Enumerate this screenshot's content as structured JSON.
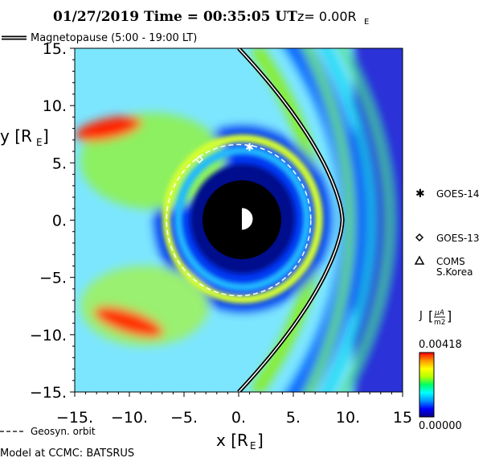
{
  "header": {
    "timestamp": "01/27/2019 Time = 00:35:05 UT",
    "z_label": "z= 0.00R",
    "z_sub": "E"
  },
  "legend_top": {
    "label": "Magnetopause (5:00 - 19:00 LT)"
  },
  "legend_bottom": {
    "geosyn_label": "Geosyn. orbit",
    "model_label": "Model at CCMC: BATSRUS"
  },
  "satellites": [
    {
      "name": "GOES-14",
      "symbol": "asterisk",
      "x": 1.0,
      "y": 6.4
    },
    {
      "name": "GOES-13",
      "symbol": "diamond",
      "x": -3.6,
      "y": 5.3
    },
    {
      "name": "COMS",
      "name_line2": "S.Korea",
      "symbol": "triangle"
    }
  ],
  "colorbar": {
    "title": "J",
    "unit_top": "μA",
    "unit_bottom": "m2",
    "max_label": "0.00418",
    "min_label": "0.00000",
    "colors": [
      "#0a0080",
      "#0000ff",
      "#0096ff",
      "#00ffff",
      "#00ff64",
      "#b4ff00",
      "#ffff00",
      "#ff9600",
      "#ff0000"
    ]
  },
  "chart_data": {
    "type": "heatmap",
    "title": "01/27/2019 Time = 00:35:05 UT z= 0.00RE",
    "xlabel": "x [RE]",
    "ylabel": "y [RE]",
    "xlim": [
      -15,
      15
    ],
    "ylim": [
      -15,
      15
    ],
    "x_ticks": [
      -15,
      -10,
      -5,
      0,
      5,
      10,
      15
    ],
    "x_tick_labels": [
      "-15.",
      "-10.",
      "-5.",
      "0.",
      "5.",
      "10.",
      "15"
    ],
    "y_ticks": [
      15,
      10,
      5,
      0,
      -5,
      -10,
      -15
    ],
    "y_tick_labels": [
      "15.",
      "10.",
      "5.",
      "0.",
      "-5.",
      "-10.",
      "-15."
    ],
    "earth_radius": 3.5,
    "geosyn_orbit_radius": 6.6,
    "magnetopause": {
      "subsolar_x": 9.5,
      "flank_x_at_y15": 0.0
    },
    "color_scale": {
      "min": 0.0,
      "max": 0.00418,
      "quantity": "J [μA/m2]"
    }
  }
}
